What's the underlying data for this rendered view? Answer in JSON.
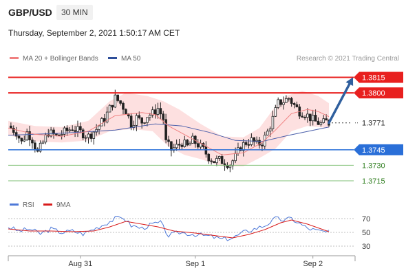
{
  "header": {
    "pair": "GBP/USD",
    "timeframe": "30 MIN",
    "datetime": "Thursday, September 2, 2021 1:50:17 AM CET"
  },
  "legend": {
    "ma20_label": "MA 20 + Bollinger Bands",
    "ma50_label": "MA 50",
    "rsi_label": "RSI",
    "rsi_ma_label": "9MA",
    "credit": "Research © 2021 Trading Central"
  },
  "colors": {
    "resistance": "#e8201f",
    "support": "#2a6fd8",
    "target": "#2e7d1e",
    "arrow": "#2f5f9e",
    "ma20": "#f08080",
    "ma50": "#4a5faa",
    "bands": "#fde0e0",
    "candle": "#222222",
    "rsi": "#4e79d8",
    "rsi_ma": "#d81b1b"
  },
  "chart_data": [
    {
      "type": "candlestick",
      "title": "GBP/USD",
      "ylim": [
        1.3705,
        1.3822
      ],
      "xticks": [
        "Aug 31",
        "Sep 1",
        "Sep 2"
      ],
      "price_levels": [
        {
          "value": 1.3815,
          "label": "1.3815",
          "kind": "resistance"
        },
        {
          "value": 1.38,
          "label": "1.3800",
          "kind": "resistance"
        },
        {
          "value": 1.3771,
          "label": "1.3771",
          "kind": "current"
        },
        {
          "value": 1.3745,
          "label": "1.3745",
          "kind": "support"
        },
        {
          "value": 1.373,
          "label": "1.3730",
          "kind": "target"
        },
        {
          "value": 1.3715,
          "label": "1.3715",
          "kind": "target"
        }
      ],
      "close_path": [
        [
          0,
          1.3768
        ],
        [
          3,
          1.3762
        ],
        [
          5,
          1.3752
        ],
        [
          7,
          1.3762
        ],
        [
          9,
          1.3755
        ],
        [
          11,
          1.3742
        ],
        [
          13,
          1.3752
        ],
        [
          15,
          1.3762
        ],
        [
          18,
          1.3758
        ],
        [
          21,
          1.3762
        ],
        [
          24,
          1.3766
        ],
        [
          27,
          1.3762
        ],
        [
          30,
          1.3758
        ],
        [
          33,
          1.3765
        ],
        [
          36,
          1.3775
        ],
        [
          38,
          1.3785
        ],
        [
          40,
          1.3795
        ],
        [
          42,
          1.379
        ],
        [
          44,
          1.3783
        ],
        [
          46,
          1.377
        ],
        [
          48,
          1.3776
        ],
        [
          50,
          1.3772
        ],
        [
          52,
          1.3778
        ],
        [
          54,
          1.378
        ],
        [
          56,
          1.3785
        ],
        [
          58,
          1.3775
        ],
        [
          59,
          1.3752
        ],
        [
          61,
          1.3745
        ],
        [
          63,
          1.3748
        ],
        [
          65,
          1.3752
        ],
        [
          67,
          1.3748
        ],
        [
          69,
          1.3754
        ],
        [
          71,
          1.375
        ],
        [
          73,
          1.3745
        ],
        [
          75,
          1.3738
        ],
        [
          77,
          1.3734
        ],
        [
          79,
          1.3735
        ],
        [
          81,
          1.3733
        ],
        [
          83,
          1.3731
        ],
        [
          85,
          1.3738
        ],
        [
          87,
          1.3748
        ],
        [
          89,
          1.3752
        ],
        [
          91,
          1.3754
        ],
        [
          93,
          1.375
        ],
        [
          95,
          1.3752
        ],
        [
          97,
          1.3762
        ],
        [
          99,
          1.3775
        ],
        [
          101,
          1.379
        ],
        [
          103,
          1.3792
        ],
        [
          105,
          1.3795
        ],
        [
          107,
          1.3788
        ],
        [
          109,
          1.3782
        ],
        [
          111,
          1.378
        ],
        [
          113,
          1.3776
        ],
        [
          115,
          1.3772
        ],
        [
          117,
          1.377
        ],
        [
          119,
          1.3772
        ],
        [
          120,
          1.3771
        ]
      ],
      "ma50_path": [
        [
          0,
          1.3759
        ],
        [
          20,
          1.3761
        ],
        [
          40,
          1.3764
        ],
        [
          55,
          1.377
        ],
        [
          65,
          1.3768
        ],
        [
          75,
          1.3762
        ],
        [
          85,
          1.3754
        ],
        [
          95,
          1.3753
        ],
        [
          105,
          1.3759
        ],
        [
          120,
          1.3767
        ]
      ],
      "ma20_path": [
        [
          0,
          1.3766
        ],
        [
          10,
          1.376
        ],
        [
          20,
          1.3758
        ],
        [
          30,
          1.3763
        ],
        [
          40,
          1.3778
        ],
        [
          50,
          1.3781
        ],
        [
          55,
          1.3779
        ],
        [
          60,
          1.3768
        ],
        [
          70,
          1.3754
        ],
        [
          80,
          1.374
        ],
        [
          88,
          1.3742
        ],
        [
          95,
          1.3752
        ],
        [
          100,
          1.3764
        ],
        [
          106,
          1.378
        ],
        [
          112,
          1.3784
        ],
        [
          116,
          1.3782
        ],
        [
          120,
          1.3777
        ]
      ],
      "band_upper": [
        [
          0,
          1.3773
        ],
        [
          10,
          1.3768
        ],
        [
          20,
          1.3767
        ],
        [
          30,
          1.3773
        ],
        [
          38,
          1.3792
        ],
        [
          44,
          1.38
        ],
        [
          52,
          1.3797
        ],
        [
          58,
          1.3792
        ],
        [
          64,
          1.3784
        ],
        [
          72,
          1.377
        ],
        [
          80,
          1.3758
        ],
        [
          88,
          1.3757
        ],
        [
          94,
          1.3766
        ],
        [
          100,
          1.3787
        ],
        [
          104,
          1.3797
        ],
        [
          110,
          1.3802
        ],
        [
          116,
          1.3797
        ],
        [
          120,
          1.379
        ]
      ],
      "band_lower": [
        [
          0,
          1.3759
        ],
        [
          10,
          1.3753
        ],
        [
          20,
          1.3752
        ],
        [
          30,
          1.3754
        ],
        [
          38,
          1.3763
        ],
        [
          46,
          1.3765
        ],
        [
          54,
          1.3763
        ],
        [
          60,
          1.3748
        ],
        [
          66,
          1.374
        ],
        [
          72,
          1.3736
        ],
        [
          80,
          1.3729
        ],
        [
          88,
          1.3729
        ],
        [
          94,
          1.3737
        ],
        [
          100,
          1.3746
        ],
        [
          106,
          1.3763
        ],
        [
          112,
          1.3768
        ],
        [
          120,
          1.3766
        ]
      ],
      "projection": {
        "from": [
          120,
          1.3771
        ],
        "to": [
          129,
          1.3815
        ]
      }
    },
    {
      "type": "line",
      "title": "RSI",
      "ylim": [
        20,
        80
      ],
      "yticks": [
        30,
        50,
        70
      ],
      "series": [
        {
          "name": "RSI",
          "values": [
            [
              0,
              58
            ],
            [
              4,
              52
            ],
            [
              8,
              55
            ],
            [
              12,
              48
            ],
            [
              16,
              55
            ],
            [
              20,
              50
            ],
            [
              24,
              52
            ],
            [
              28,
              48
            ],
            [
              32,
              55
            ],
            [
              36,
              62
            ],
            [
              40,
              70
            ],
            [
              43,
              72
            ],
            [
              46,
              60
            ],
            [
              50,
              56
            ],
            [
              54,
              62
            ],
            [
              57,
              64
            ],
            [
              60,
              45
            ],
            [
              64,
              50
            ],
            [
              68,
              48
            ],
            [
              72,
              46
            ],
            [
              76,
              44
            ],
            [
              80,
              40
            ],
            [
              84,
              42
            ],
            [
              88,
              50
            ],
            [
              92,
              55
            ],
            [
              96,
              60
            ],
            [
              100,
              70
            ],
            [
              103,
              68
            ],
            [
              106,
              70
            ],
            [
              109,
              63
            ],
            [
              112,
              56
            ],
            [
              116,
              52
            ],
            [
              120,
              50
            ]
          ]
        },
        {
          "name": "9MA",
          "values": [
            [
              0,
              55
            ],
            [
              8,
              52
            ],
            [
              16,
              52
            ],
            [
              24,
              51
            ],
            [
              32,
              52
            ],
            [
              38,
              58
            ],
            [
              44,
              66
            ],
            [
              50,
              62
            ],
            [
              56,
              58
            ],
            [
              62,
              52
            ],
            [
              70,
              49
            ],
            [
              78,
              45
            ],
            [
              84,
              42
            ],
            [
              90,
              47
            ],
            [
              96,
              54
            ],
            [
              102,
              64
            ],
            [
              106,
              68
            ],
            [
              112,
              62
            ],
            [
              120,
              51
            ]
          ]
        }
      ]
    }
  ]
}
